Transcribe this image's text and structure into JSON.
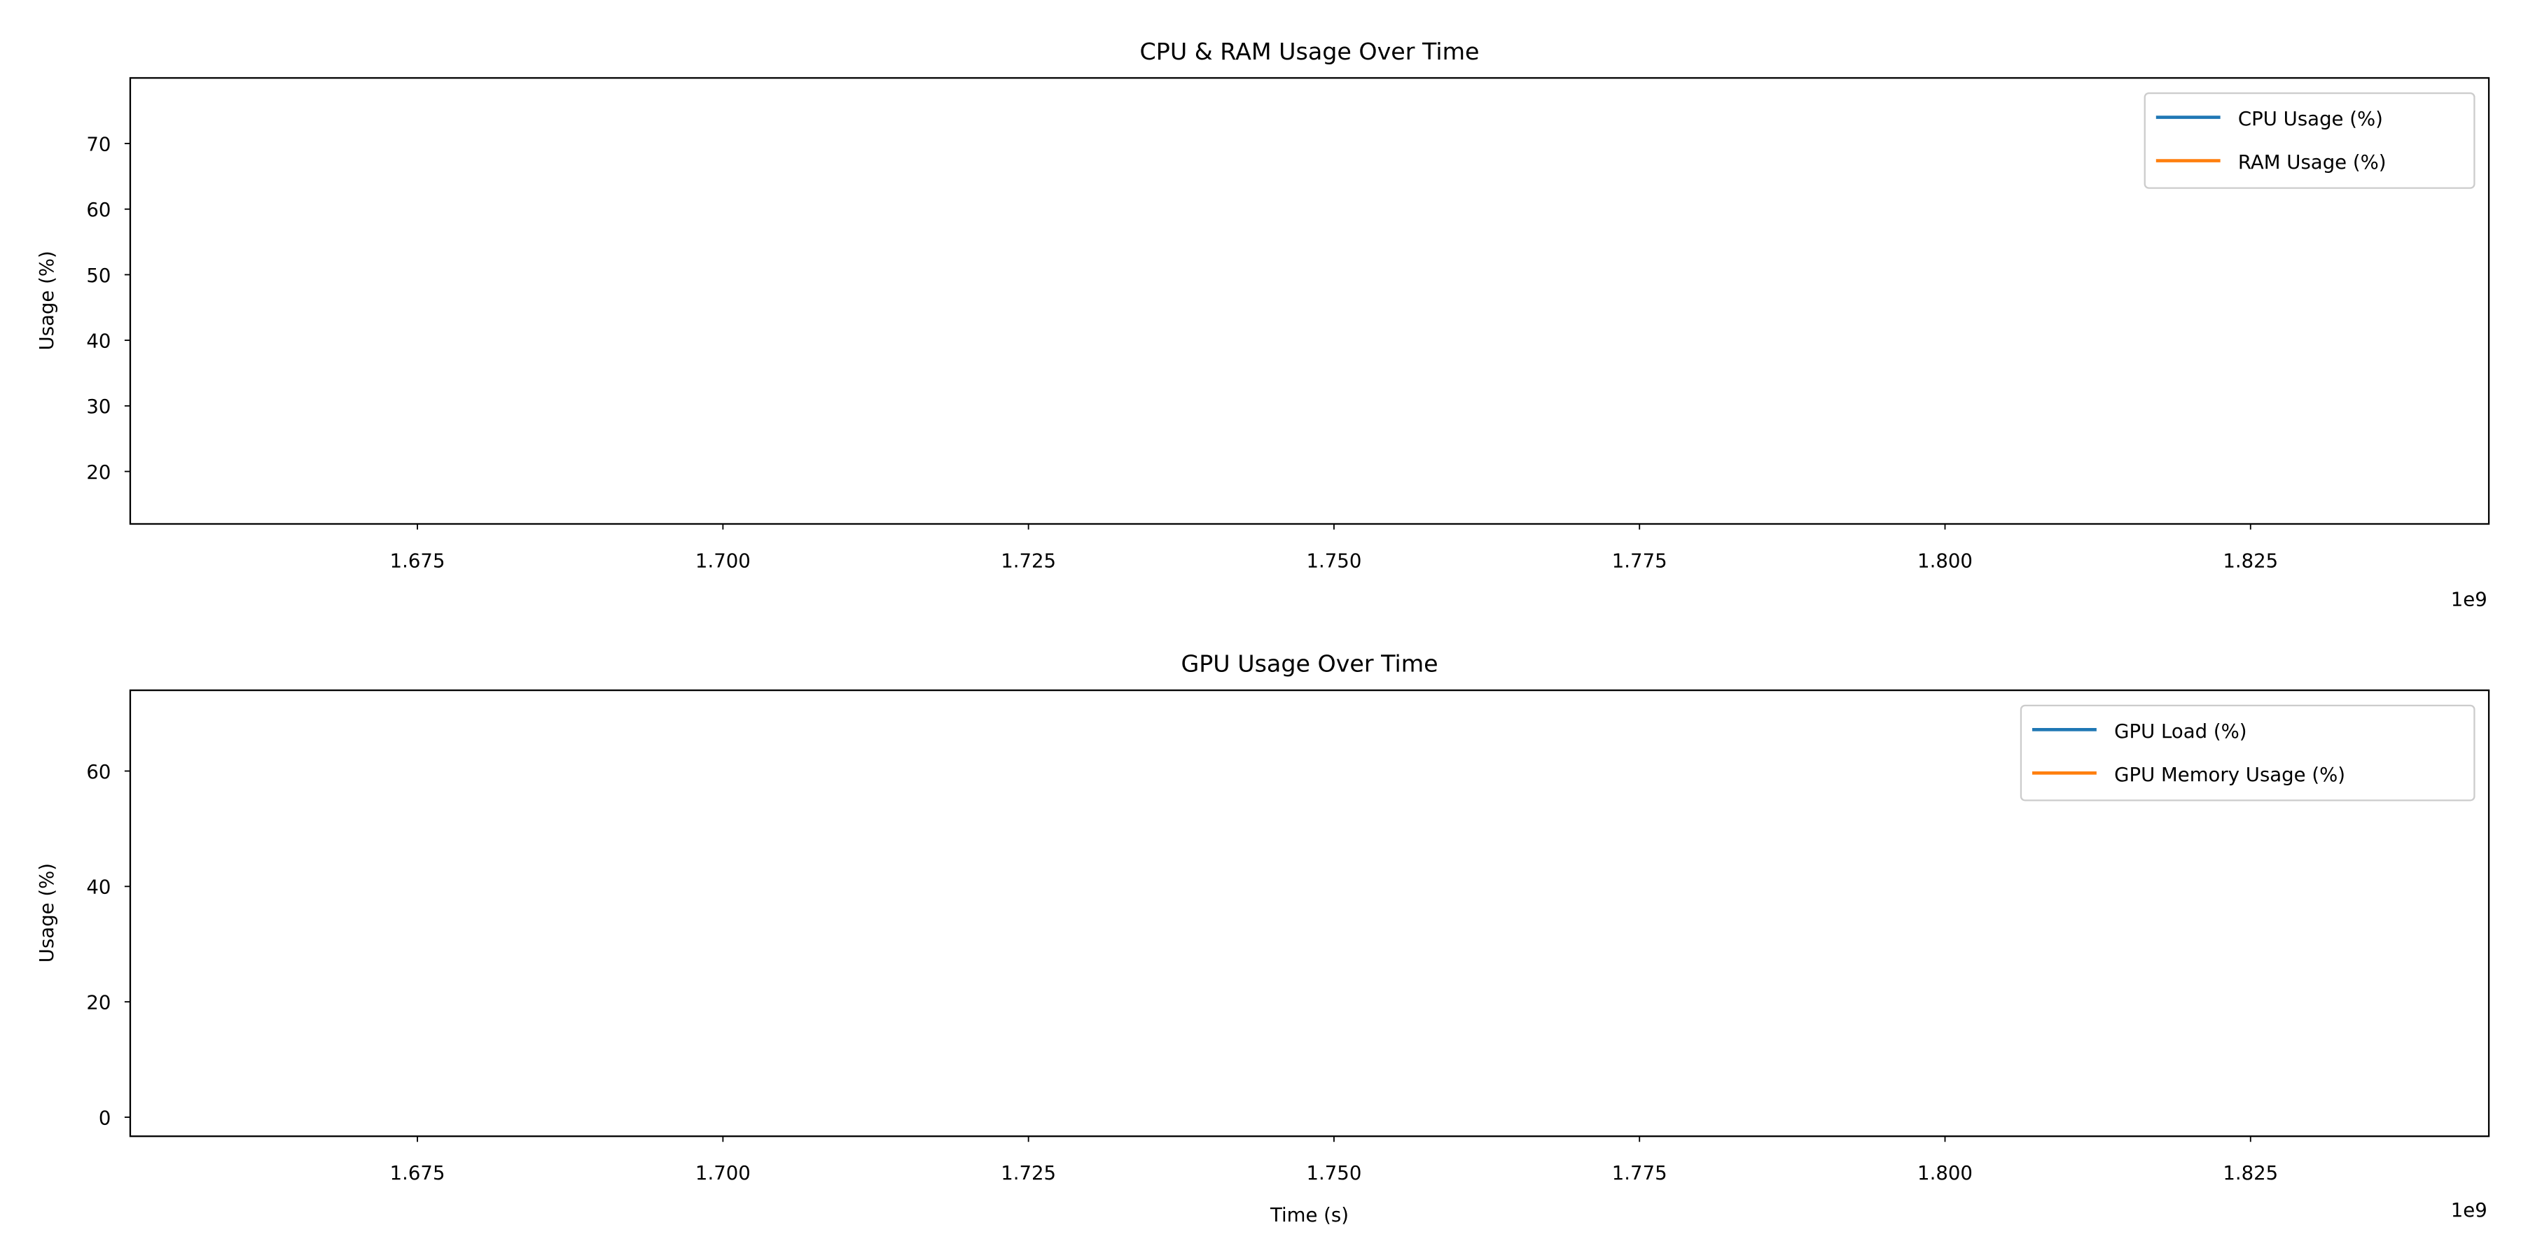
{
  "chart_data": [
    {
      "type": "line",
      "title": "CPU & RAM Usage Over Time",
      "xlabel": "",
      "ylabel": "Usage (%)",
      "xlim": [
        1651500000,
        1844500000
      ],
      "ylim": [
        12,
        80
      ],
      "x_ticks": [
        1.675,
        1.7,
        1.725,
        1.75,
        1.775,
        1.8,
        1.825
      ],
      "x_tick_labels": [
        "1.675",
        "1.700",
        "1.725",
        "1.750",
        "1.775",
        "1.800",
        "1.825"
      ],
      "x_offset_label": "1e9",
      "y_ticks": [
        20,
        30,
        40,
        50,
        60,
        70
      ],
      "y_tick_labels": [
        "20",
        "30",
        "40",
        "50",
        "60",
        "70"
      ],
      "grid": false,
      "legend_position": "top-right",
      "series": [
        {
          "name": "CPU Usage (%)",
          "color": "#1f77b4",
          "x": [],
          "y": []
        },
        {
          "name": "RAM Usage (%)",
          "color": "#ff7f0e",
          "x": [],
          "y": []
        }
      ]
    },
    {
      "type": "line",
      "title": "GPU Usage Over Time",
      "xlabel": "Time (s)",
      "ylabel": "Usage (%)",
      "xlim": [
        1651500000,
        1844500000
      ],
      "ylim": [
        -3.3,
        74
      ],
      "x_ticks": [
        1.675,
        1.7,
        1.725,
        1.75,
        1.775,
        1.8,
        1.825
      ],
      "x_tick_labels": [
        "1.675",
        "1.700",
        "1.725",
        "1.750",
        "1.775",
        "1.800",
        "1.825"
      ],
      "x_offset_label": "1e9",
      "y_ticks": [
        0,
        20,
        40,
        60
      ],
      "y_tick_labels": [
        "0",
        "20",
        "40",
        "60"
      ],
      "grid": false,
      "legend_position": "top-right",
      "series": [
        {
          "name": "GPU Load (%)",
          "color": "#1f77b4",
          "x": [],
          "y": []
        },
        {
          "name": "GPU Memory Usage (%)",
          "color": "#ff7f0e",
          "x": [],
          "y": []
        }
      ]
    }
  ]
}
